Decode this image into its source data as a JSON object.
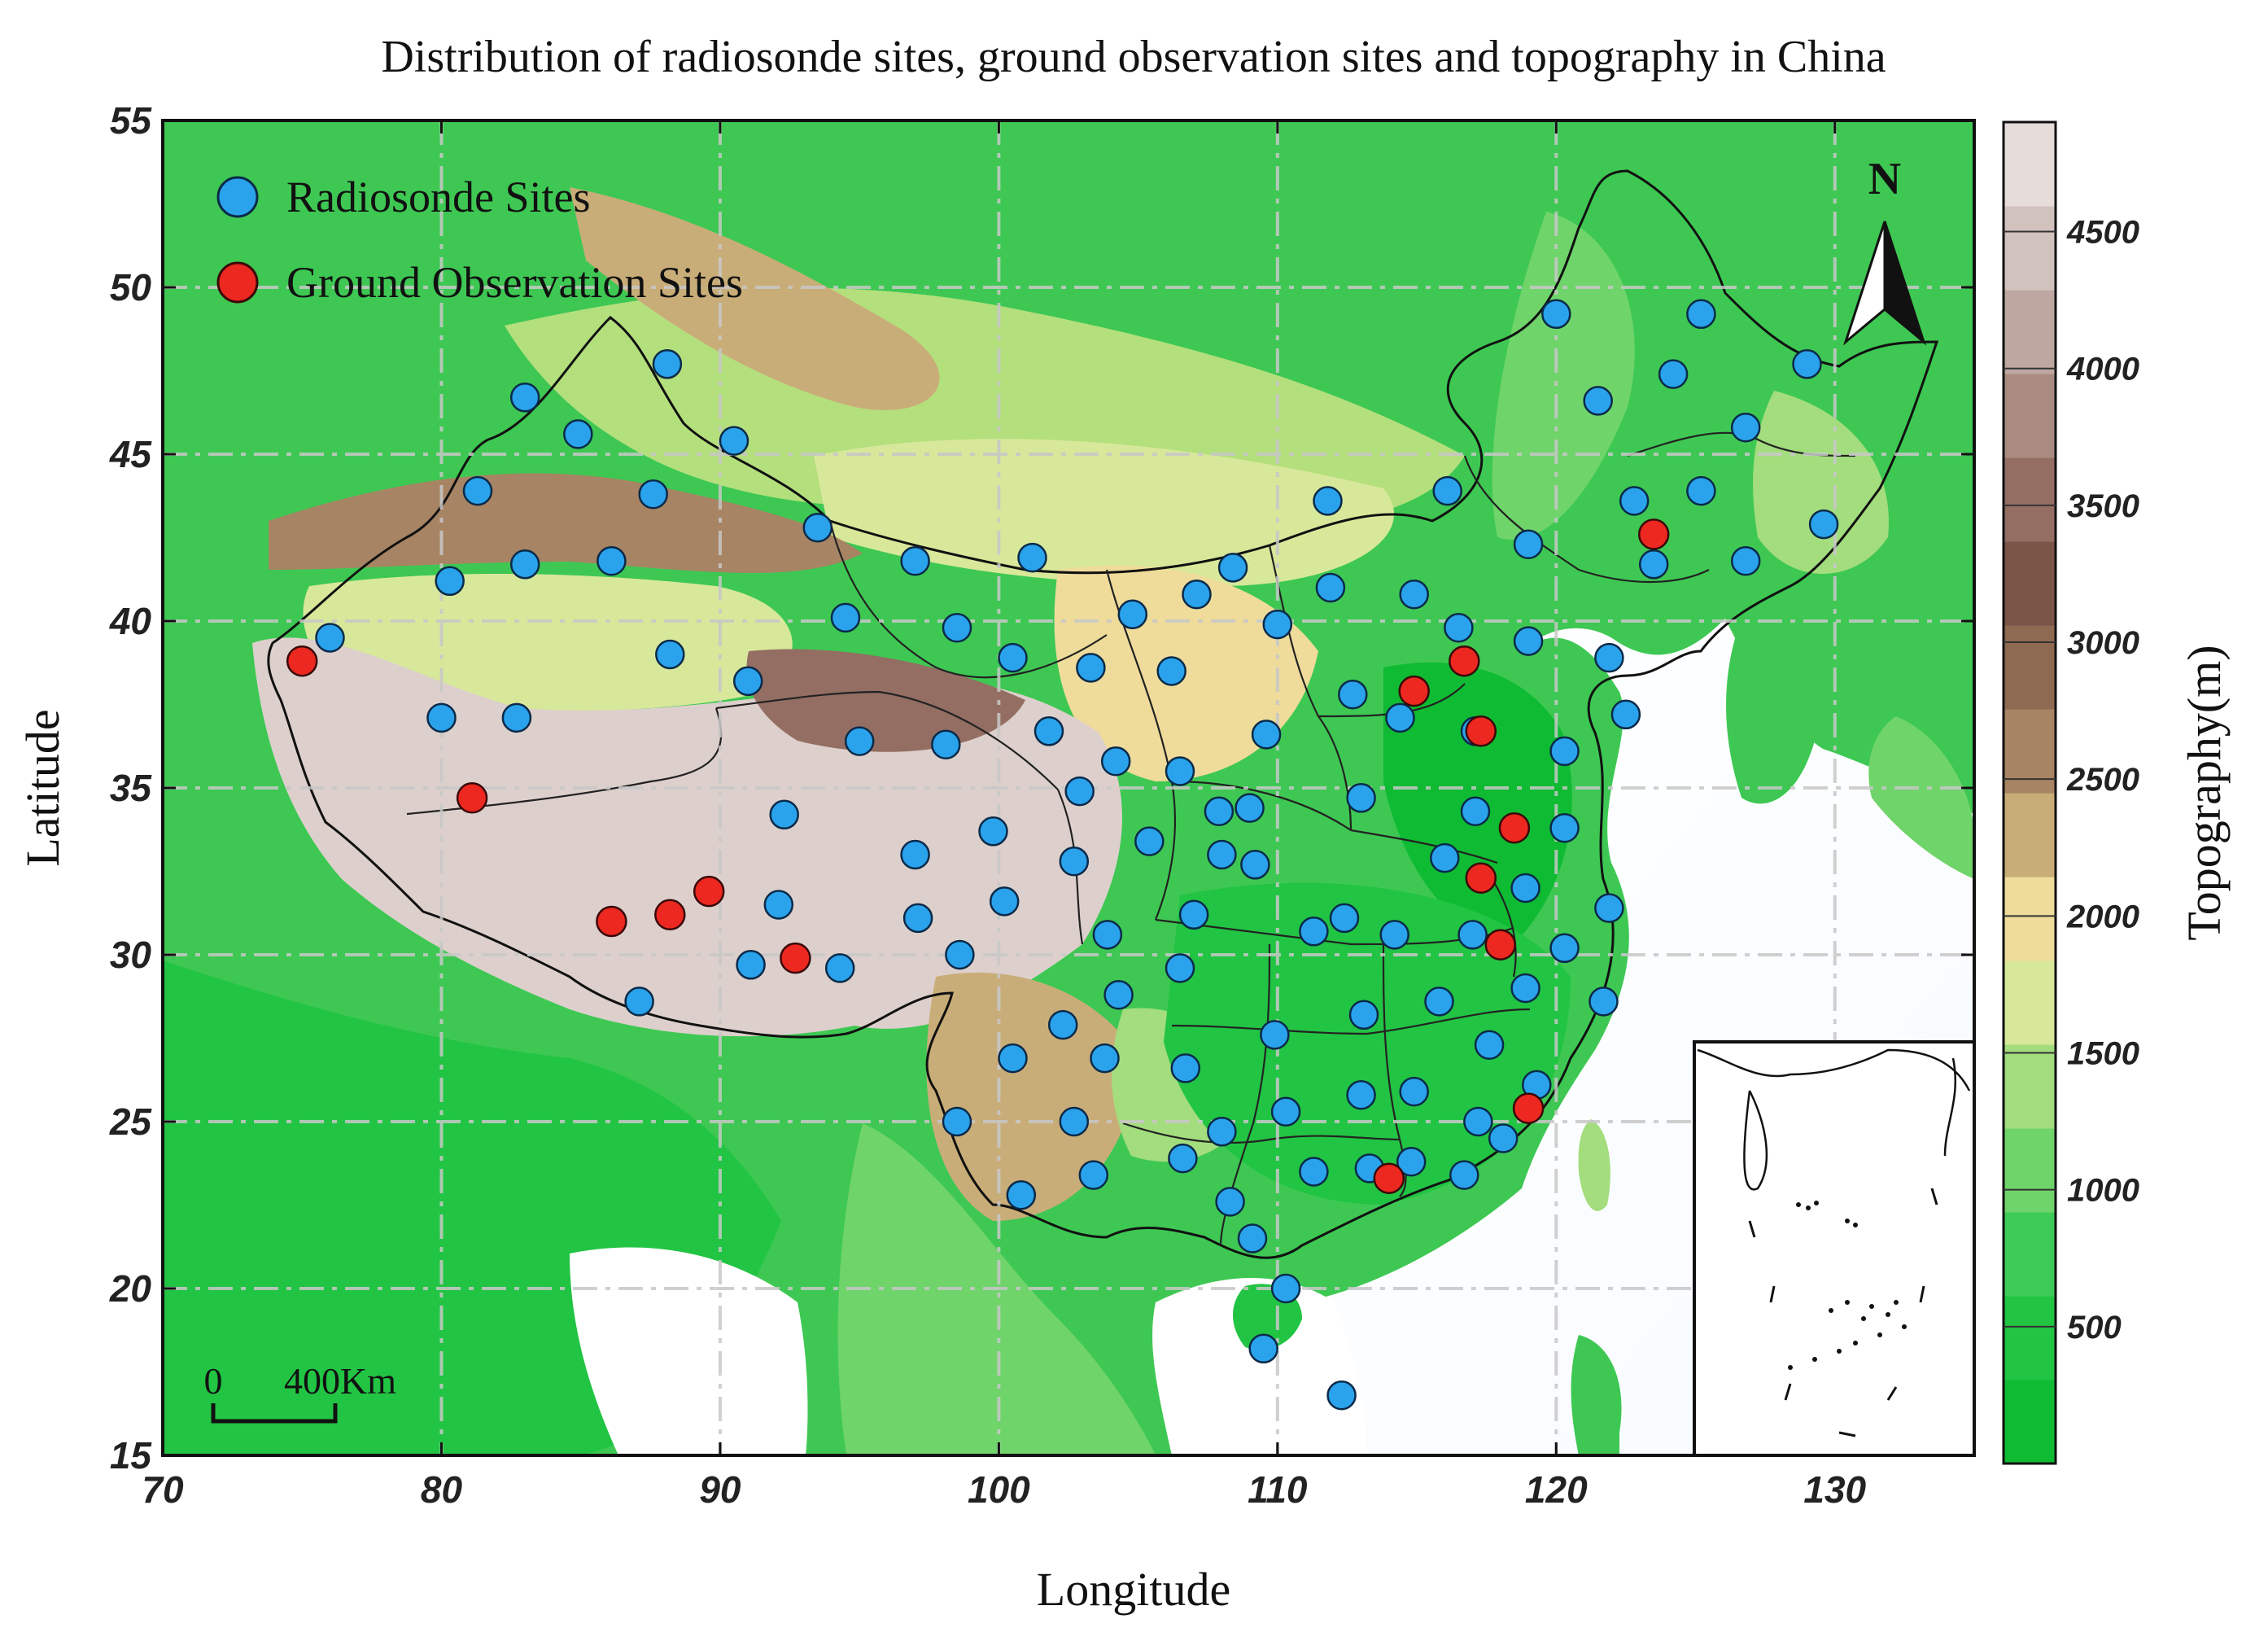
{
  "title": "Distribution of radiosonde sites, ground observation sites and topography in China",
  "axes": {
    "xlabel": "Longitude",
    "ylabel": "Latitude",
    "xlim": [
      70,
      135
    ],
    "ylim": [
      15,
      55
    ],
    "xticks": [
      "70",
      "80",
      "90",
      "100",
      "110",
      "120",
      "130"
    ],
    "yticks": [
      "15",
      "20",
      "25",
      "30",
      "35",
      "40",
      "45",
      "50",
      "55"
    ],
    "grid": true
  },
  "legend": {
    "radiosonde": "Radiosonde Sites",
    "ground": "Ground Observation Sites",
    "placement": "top-left"
  },
  "north_arrow": "N",
  "scale_bar": {
    "zero": "0",
    "label": "400Km"
  },
  "colorbar": {
    "label": "Topography(m)",
    "ticks": [
      "500",
      "1000",
      "1500",
      "2000",
      "2500",
      "3000",
      "3500",
      "4000",
      "4500"
    ],
    "colors": [
      "#0fbb32",
      "#22c443",
      "#3dcc57",
      "#6fd46a",
      "#a3dd7d",
      "#d8e89a",
      "#efdc9b",
      "#c9ad78",
      "#a78463",
      "#8f6a52",
      "#7b5547",
      "#946e62",
      "#a98b82",
      "#bea7a0",
      "#d2c2bd",
      "#e6dcd9"
    ]
  },
  "colors": {
    "radiosonde": "#2aa3ec",
    "ground": "#ec2820",
    "sea": "#ffffff",
    "land_low": "#1ec03c",
    "plateau": "#ddd0cc"
  },
  "chart_data": {
    "type": "scatter",
    "series": [
      {
        "name": "Radiosonde Sites",
        "points": [
          [
            76.0,
            39.5
          ],
          [
            80.3,
            41.2
          ],
          [
            81.3,
            43.9
          ],
          [
            83.0,
            46.7
          ],
          [
            84.9,
            45.6
          ],
          [
            88.1,
            47.7
          ],
          [
            87.6,
            43.8
          ],
          [
            90.5,
            45.4
          ],
          [
            93.5,
            42.8
          ],
          [
            83.0,
            41.7
          ],
          [
            86.1,
            41.8
          ],
          [
            80.0,
            37.1
          ],
          [
            82.7,
            37.1
          ],
          [
            88.2,
            39.0
          ],
          [
            91.0,
            38.2
          ],
          [
            94.5,
            40.1
          ],
          [
            95.0,
            36.4
          ],
          [
            98.1,
            36.3
          ],
          [
            97.0,
            41.8
          ],
          [
            98.5,
            39.8
          ],
          [
            100.5,
            38.9
          ],
          [
            101.2,
            41.9
          ],
          [
            101.8,
            36.7
          ],
          [
            103.3,
            38.6
          ],
          [
            102.9,
            34.9
          ],
          [
            104.2,
            35.8
          ],
          [
            104.8,
            40.2
          ],
          [
            106.2,
            38.5
          ],
          [
            107.1,
            40.8
          ],
          [
            108.4,
            41.6
          ],
          [
            106.5,
            35.5
          ],
          [
            109.0,
            34.4
          ],
          [
            110.0,
            39.9
          ],
          [
            111.9,
            41.0
          ],
          [
            111.8,
            43.6
          ],
          [
            109.6,
            36.6
          ],
          [
            112.7,
            37.8
          ],
          [
            116.1,
            43.9
          ],
          [
            114.9,
            40.8
          ],
          [
            116.5,
            39.8
          ],
          [
            114.4,
            37.1
          ],
          [
            117.1,
            36.7
          ],
          [
            119.0,
            39.4
          ],
          [
            119.0,
            42.3
          ],
          [
            120.0,
            49.2
          ],
          [
            121.5,
            46.6
          ],
          [
            122.8,
            43.6
          ],
          [
            124.2,
            47.4
          ],
          [
            125.2,
            49.2
          ],
          [
            126.8,
            45.8
          ],
          [
            125.2,
            43.9
          ],
          [
            123.5,
            41.7
          ],
          [
            126.8,
            41.8
          ],
          [
            129.0,
            47.7
          ],
          [
            129.6,
            42.9
          ],
          [
            121.9,
            38.9
          ],
          [
            122.5,
            37.2
          ],
          [
            120.3,
            36.1
          ],
          [
            117.1,
            34.3
          ],
          [
            120.3,
            33.8
          ],
          [
            116.0,
            32.9
          ],
          [
            118.9,
            32.0
          ],
          [
            121.9,
            31.4
          ],
          [
            120.3,
            30.2
          ],
          [
            118.9,
            29.0
          ],
          [
            121.7,
            28.6
          ],
          [
            117.0,
            30.6
          ],
          [
            114.2,
            30.6
          ],
          [
            112.4,
            31.1
          ],
          [
            111.3,
            30.7
          ],
          [
            113.0,
            34.7
          ],
          [
            109.2,
            32.7
          ],
          [
            107.0,
            31.2
          ],
          [
            106.5,
            29.6
          ],
          [
            107.9,
            34.3
          ],
          [
            108.0,
            33.0
          ],
          [
            103.9,
            30.6
          ],
          [
            105.4,
            33.4
          ],
          [
            102.7,
            32.8
          ],
          [
            100.2,
            31.6
          ],
          [
            99.8,
            33.7
          ],
          [
            97.0,
            33.0
          ],
          [
            97.1,
            31.1
          ],
          [
            98.6,
            30.0
          ],
          [
            92.1,
            31.5
          ],
          [
            92.3,
            34.2
          ],
          [
            91.1,
            29.7
          ],
          [
            94.3,
            29.6
          ],
          [
            87.1,
            28.6
          ],
          [
            100.5,
            26.9
          ],
          [
            102.3,
            27.9
          ],
          [
            103.8,
            26.9
          ],
          [
            104.3,
            28.8
          ],
          [
            106.7,
            26.6
          ],
          [
            109.9,
            27.6
          ],
          [
            113.1,
            28.2
          ],
          [
            115.8,
            28.6
          ],
          [
            117.6,
            27.3
          ],
          [
            119.3,
            26.1
          ],
          [
            117.2,
            25.0
          ],
          [
            114.9,
            25.9
          ],
          [
            113.0,
            25.8
          ],
          [
            110.3,
            25.3
          ],
          [
            108.0,
            24.7
          ],
          [
            106.6,
            23.9
          ],
          [
            108.3,
            22.6
          ],
          [
            111.3,
            23.5
          ],
          [
            113.3,
            23.6
          ],
          [
            114.8,
            23.8
          ],
          [
            116.7,
            23.4
          ],
          [
            118.1,
            24.5
          ],
          [
            109.1,
            21.5
          ],
          [
            110.3,
            20.0
          ],
          [
            109.5,
            18.2
          ],
          [
            112.3,
            16.8
          ],
          [
            100.8,
            22.8
          ],
          [
            102.7,
            25.0
          ],
          [
            98.5,
            25.0
          ],
          [
            103.4,
            23.4
          ]
        ]
      },
      {
        "name": "Ground Observation Sites",
        "points": [
          [
            75.0,
            38.8
          ],
          [
            81.1,
            34.7
          ],
          [
            86.1,
            31.0
          ],
          [
            88.2,
            31.2
          ],
          [
            89.6,
            31.9
          ],
          [
            92.7,
            29.9
          ],
          [
            114.9,
            37.9
          ],
          [
            116.7,
            38.8
          ],
          [
            117.3,
            36.7
          ],
          [
            118.5,
            33.8
          ],
          [
            117.3,
            32.3
          ],
          [
            118.0,
            30.3
          ],
          [
            119.0,
            25.4
          ],
          [
            114.0,
            23.3
          ],
          [
            123.5,
            42.6
          ]
        ]
      }
    ]
  }
}
